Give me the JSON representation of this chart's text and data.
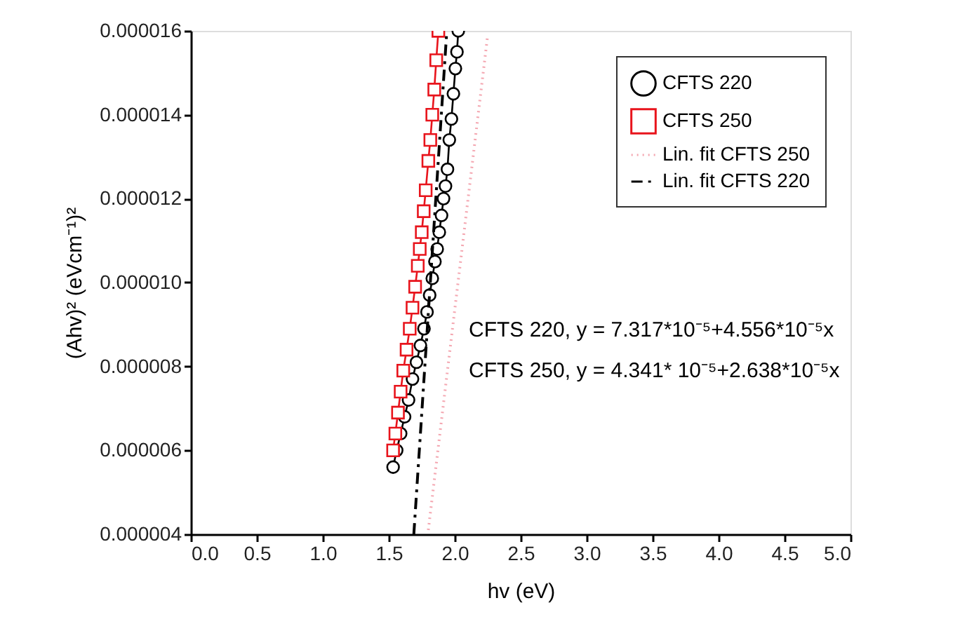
{
  "chart_data": {
    "type": "line",
    "xlabel": "hv (eV)",
    "ylabel": "(Ahv)² (eVcm⁻¹)²",
    "xlim": [
      0,
      5
    ],
    "ylim": [
      4e-06,
      1.6e-05
    ],
    "xticks": [
      {
        "value": 0,
        "label": "0.0"
      },
      {
        "value": 0.5,
        "label": "0.5"
      },
      {
        "value": 1,
        "label": "1.0"
      },
      {
        "value": 1.5,
        "label": "1.5"
      },
      {
        "value": 2,
        "label": "2.0"
      },
      {
        "value": 2.5,
        "label": "2.5"
      },
      {
        "value": 3,
        "label": "3.0"
      },
      {
        "value": 3.5,
        "label": "3.5"
      },
      {
        "value": 4,
        "label": "4.0"
      },
      {
        "value": 4.5,
        "label": "4.5"
      },
      {
        "value": 5,
        "label": "5.0"
      }
    ],
    "yticks": [
      {
        "value": 4e-06,
        "label": "0.000004"
      },
      {
        "value": 6e-06,
        "label": "0.000006"
      },
      {
        "value": 8e-06,
        "label": "0.000008"
      },
      {
        "value": 1e-05,
        "label": "0.000010"
      },
      {
        "value": 1.2e-05,
        "label": "0.000012"
      },
      {
        "value": 1.4e-05,
        "label": "0.000014"
      },
      {
        "value": 1.6e-05,
        "label": "0.000016"
      }
    ],
    "grid": false,
    "legend": "top right",
    "annotations": [
      "CFTS 220, y = 7.317*10⁻⁵+4.556*10⁻⁵x",
      "CFTS 250, y = 4.341* 10⁻⁵+2.638*10⁻⁵x"
    ],
    "series": [
      {
        "name": "CFTS 220",
        "color": "#000000",
        "marker": "circle",
        "line_style": "solid",
        "x": [
          1.533,
          1.56,
          1.59,
          1.62,
          1.65,
          1.68,
          1.71,
          1.74,
          1.767,
          1.79,
          1.81,
          1.83,
          1.85,
          1.867,
          1.883,
          1.9,
          1.915,
          1.93,
          1.945,
          1.959,
          1.975,
          1.99,
          2.005,
          2.017,
          2.027
        ],
        "values": [
          5.6e-06,
          6e-06,
          6.4e-06,
          6.8e-06,
          7.2e-06,
          7.7e-06,
          8.1e-06,
          8.5e-06,
          8.9e-06,
          9.3e-06,
          9.7e-06,
          1.01e-05,
          1.05e-05,
          1.08e-05,
          1.12e-05,
          1.16e-05,
          1.2e-05,
          1.23e-05,
          1.27e-05,
          1.34e-05,
          1.39e-05,
          1.45e-05,
          1.51e-05,
          1.55e-05,
          1.6e-05
        ]
      },
      {
        "name": "CFTS 250",
        "color": "#e8141c",
        "marker": "square",
        "line_style": "solid",
        "x": [
          1.533,
          1.55,
          1.57,
          1.59,
          1.61,
          1.635,
          1.659,
          1.68,
          1.7,
          1.72,
          1.735,
          1.75,
          1.765,
          1.78,
          1.8,
          1.815,
          1.83,
          1.845,
          1.86,
          1.876
        ],
        "values": [
          6e-06,
          6.4e-06,
          6.9e-06,
          7.4e-06,
          7.9e-06,
          8.4e-06,
          8.9e-06,
          9.4e-06,
          9.9e-06,
          1.04e-05,
          1.08e-05,
          1.12e-05,
          1.17e-05,
          1.22e-05,
          1.29e-05,
          1.34e-05,
          1.4e-05,
          1.46e-05,
          1.53e-05,
          1.6e-05
        ]
      },
      {
        "name": "Lin. fit CFTS 250",
        "color": "#f4a6b0",
        "marker": "none",
        "line_style": "dotted",
        "x": [
          1.8,
          2.25
        ],
        "values": [
          4.1e-06,
          1.59e-05
        ]
      },
      {
        "name": "Lin. fit CFTS 220",
        "color": "#000000",
        "marker": "none",
        "line_style": "dashed",
        "x": [
          1.69,
          1.94
        ],
        "values": [
          4e-06,
          1.6e-05
        ]
      }
    ]
  }
}
